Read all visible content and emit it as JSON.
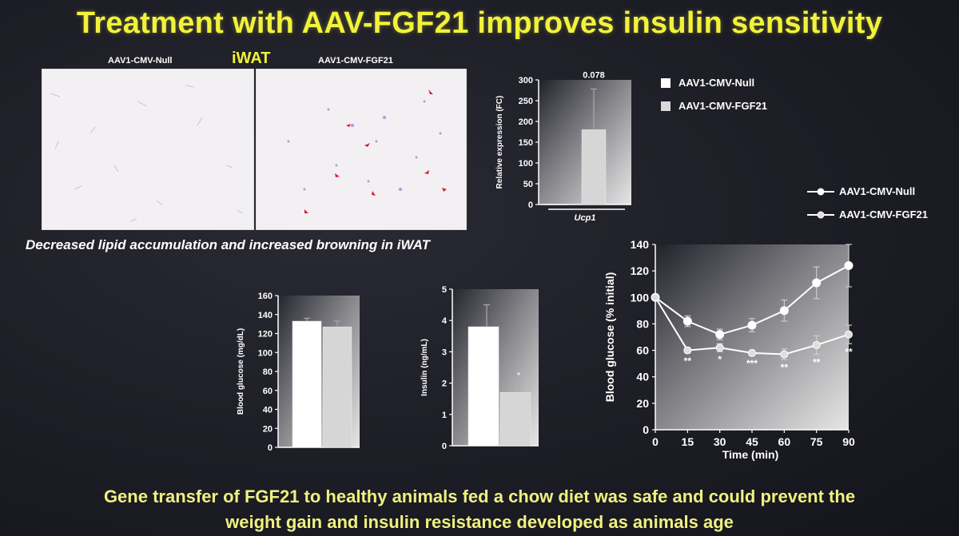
{
  "title": "Treatment with AAV-FGF21 improves insulin sensitivity",
  "micrograph": {
    "label_null": "AAV1-CMV-Null",
    "label_fgf21": "AAV1-CMV-FGF21",
    "tissue_label": "iWAT",
    "caption": "Decreased lipid accumulation and increased browning in iWAT"
  },
  "legend_top": {
    "items": [
      {
        "label": "AAV1-CMV-Null",
        "color": "#ffffff"
      },
      {
        "label": "AAV1-CMV-FGF21",
        "color": "#d9d9d9"
      }
    ]
  },
  "legend_line": {
    "items": [
      {
        "label": "AAV1-CMV-Null"
      },
      {
        "label": "AAV1-CMV-FGF21"
      }
    ]
  },
  "footer": {
    "line1": "Gene transfer of FGF21 to healthy animals fed a chow diet was safe and could prevent the",
    "line2": "weight gain and insulin resistance developed as animals age"
  },
  "chart_data": [
    {
      "id": "ucp1",
      "type": "bar",
      "title": "",
      "ylabel": "Relative expression (FC)",
      "xlabel": "Ucp1",
      "ylim": [
        0,
        300
      ],
      "yticks": [
        0,
        50,
        100,
        150,
        200,
        250,
        300
      ],
      "categories": [
        "Ucp1"
      ],
      "series": [
        {
          "name": "AAV1-CMV-Null",
          "values": [
            1
          ],
          "err": [
            0
          ]
        },
        {
          "name": "AAV1-CMV-FGF21",
          "values": [
            180
          ],
          "err": [
            98
          ]
        }
      ],
      "annotation": "0.078"
    },
    {
      "id": "glucose",
      "type": "bar",
      "title": "",
      "ylabel": "Blood glucose (mg/dL)",
      "xlabel": "",
      "ylim": [
        0,
        160
      ],
      "yticks": [
        0,
        20,
        40,
        60,
        80,
        100,
        120,
        140,
        160
      ],
      "categories": [
        ""
      ],
      "series": [
        {
          "name": "AAV1-CMV-Null",
          "values": [
            133
          ],
          "err": [
            3
          ]
        },
        {
          "name": "AAV1-CMV-FGF21",
          "values": [
            127
          ],
          "err": [
            6
          ]
        }
      ]
    },
    {
      "id": "insulin",
      "type": "bar",
      "title": "",
      "ylabel": "Insulin (ng/mL)",
      "xlabel": "",
      "ylim": [
        0,
        5
      ],
      "yticks": [
        0,
        1,
        2,
        3,
        4,
        5
      ],
      "categories": [
        ""
      ],
      "series": [
        {
          "name": "AAV1-CMV-Null",
          "values": [
            3.8
          ],
          "err": [
            0.7
          ]
        },
        {
          "name": "AAV1-CMV-FGF21",
          "values": [
            1.7
          ],
          "err": [
            0.35
          ]
        }
      ],
      "significance": [
        "",
        "*"
      ]
    },
    {
      "id": "itt",
      "type": "line",
      "title": "",
      "ylabel": "Blood glucose (% initial)",
      "xlabel": "Time (min)",
      "ylim": [
        0,
        140
      ],
      "yticks": [
        0,
        20,
        40,
        60,
        80,
        100,
        120,
        140
      ],
      "x": [
        0,
        15,
        30,
        45,
        60,
        75,
        90
      ],
      "series": [
        {
          "name": "AAV1-CMV-Null",
          "values": [
            100,
            82,
            72,
            79,
            90,
            111,
            124
          ],
          "err": [
            0,
            4,
            4,
            5,
            8,
            12,
            16
          ]
        },
        {
          "name": "AAV1-CMV-FGF21",
          "values": [
            100,
            60,
            62,
            58,
            57,
            64,
            72
          ],
          "err": [
            0,
            2,
            3,
            2,
            4,
            7,
            7
          ]
        }
      ],
      "significance": [
        "",
        "**",
        "*",
        "***",
        "**",
        "**",
        "**"
      ]
    }
  ]
}
